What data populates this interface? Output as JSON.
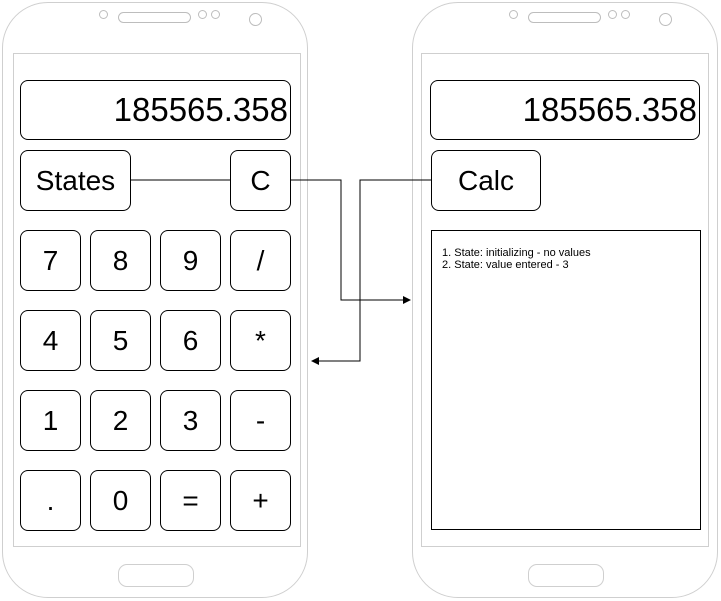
{
  "left_phone": {
    "display_value": "185565.358",
    "states_label": "States",
    "clear_label": "C",
    "keypad": [
      [
        "7",
        "8",
        "9",
        "/"
      ],
      [
        "4",
        "5",
        "6",
        "*"
      ],
      [
        "1",
        "2",
        "3",
        "-"
      ],
      [
        ".",
        "0",
        "=",
        "+"
      ]
    ]
  },
  "right_phone": {
    "display_value": "185565.358",
    "calc_label": "Calc",
    "state_log": [
      "1. State: initializing - no values",
      "2. State: value entered - 3"
    ]
  }
}
